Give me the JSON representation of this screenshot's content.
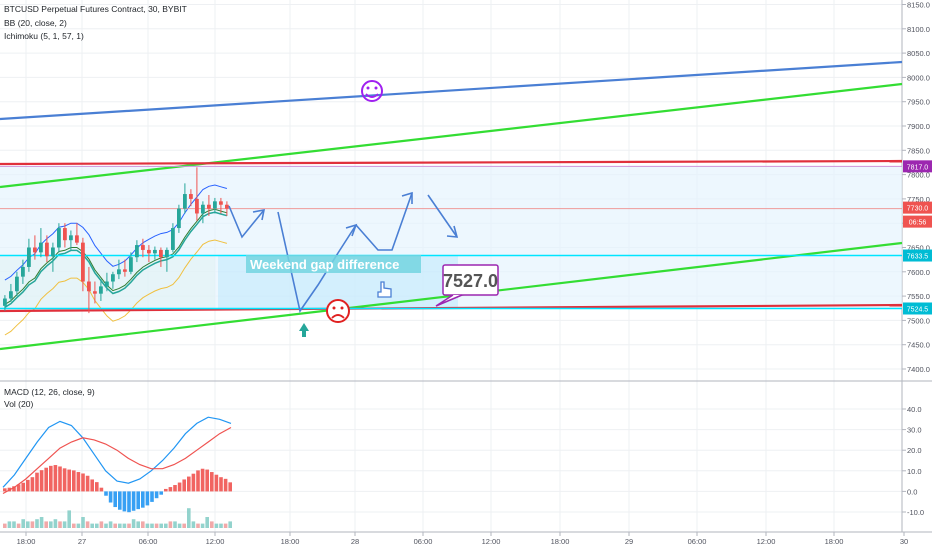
{
  "header": {
    "symbol_line": "BTCUSD Perpetual Futures Contract, 30, BYBIT",
    "bb_line": "BB (20, close, 2)",
    "ichimoku_line": "Ichimoku (5, 1, 57, 1)"
  },
  "macd_panel": {
    "macd_line": "MACD (12, 26, close, 9)",
    "vol_line": "Vol (20)"
  },
  "annotations": {
    "gap_label": "Weekend gap difference",
    "target_price": "7527.0",
    "happy_icon": "smiley-face-icon",
    "sad_icon": "sad-face-icon",
    "hand_icon": "pointing-hand-icon",
    "arrow_icon": "up-arrow-icon"
  },
  "price_badges": [
    {
      "text": "7817.0",
      "color": "#9c27b0"
    },
    {
      "text": "7730.0",
      "color": "#ef5350"
    },
    {
      "text": "06:56",
      "color": "#ef5350"
    },
    {
      "text": "7633.5",
      "color": "#00bcd4"
    },
    {
      "text": "7524.5",
      "color": "#00bcd4"
    }
  ],
  "colors": {
    "up": "#26a69a",
    "down": "#ef5350",
    "blue_line": "#4a7fd4",
    "green_line": "#33dd33",
    "red_line": "#e0303b",
    "cyan_line": "#00e5ff",
    "purple": "#9c27b0"
  },
  "chart_data": {
    "type": "candlestick",
    "price_axis": {
      "ticks": [
        "8150.0",
        "8100.0",
        "8050.0",
        "8000.0",
        "7950.0",
        "7900.0",
        "7850.0",
        "7800.0",
        "7750.0",
        "7700.0",
        "7650.0",
        "7600.0",
        "7550.0",
        "7500.0",
        "7450.0",
        "7400.0"
      ],
      "range": [
        7393,
        8168
      ]
    },
    "macd_axis": {
      "ticks": [
        "40.0",
        "30.0",
        "20.0",
        "10.0",
        "0.0",
        "-10.0"
      ],
      "range": [
        -16,
        42
      ]
    },
    "time_axis": {
      "ticks": [
        "18:00",
        "27",
        "06:00",
        "12:00",
        "18:00",
        "28",
        "06:00",
        "12:00",
        "18:00",
        "29",
        "06:00",
        "12:00",
        "18:00",
        "30"
      ]
    },
    "candles": [
      [
        7530,
        7552,
        7520,
        7545
      ],
      [
        7545,
        7575,
        7538,
        7560
      ],
      [
        7560,
        7600,
        7550,
        7590
      ],
      [
        7590,
        7625,
        7575,
        7610
      ],
      [
        7610,
        7668,
        7600,
        7650
      ],
      [
        7650,
        7675,
        7625,
        7640
      ],
      [
        7640,
        7690,
        7630,
        7660
      ],
      [
        7660,
        7675,
        7620,
        7632
      ],
      [
        7632,
        7660,
        7600,
        7650
      ],
      [
        7650,
        7700,
        7640,
        7690
      ],
      [
        7690,
        7700,
        7650,
        7665
      ],
      [
        7665,
        7685,
        7645,
        7675
      ],
      [
        7675,
        7700,
        7655,
        7660
      ],
      [
        7660,
        7670,
        7560,
        7580
      ],
      [
        7580,
        7610,
        7515,
        7560
      ],
      [
        7560,
        7580,
        7535,
        7555
      ],
      [
        7555,
        7585,
        7540,
        7570
      ],
      [
        7570,
        7598,
        7560,
        7580
      ],
      [
        7580,
        7600,
        7565,
        7595
      ],
      [
        7595,
        7625,
        7585,
        7605
      ],
      [
        7605,
        7625,
        7590,
        7600
      ],
      [
        7600,
        7640,
        7595,
        7630
      ],
      [
        7630,
        7665,
        7620,
        7655
      ],
      [
        7655,
        7668,
        7630,
        7645
      ],
      [
        7645,
        7655,
        7620,
        7638
      ],
      [
        7638,
        7652,
        7625,
        7645
      ],
      [
        7645,
        7650,
        7610,
        7630
      ],
      [
        7630,
        7650,
        7600,
        7645
      ],
      [
        7645,
        7700,
        7640,
        7690
      ],
      [
        7690,
        7738,
        7680,
        7730
      ],
      [
        7730,
        7782,
        7720,
        7760
      ],
      [
        7760,
        7770,
        7735,
        7750
      ],
      [
        7750,
        7815,
        7705,
        7720
      ],
      [
        7720,
        7745,
        7700,
        7738
      ],
      [
        7738,
        7758,
        7715,
        7730
      ],
      [
        7730,
        7752,
        7720,
        7745
      ],
      [
        7745,
        7752,
        7720,
        7738
      ],
      [
        7738,
        7745,
        7715,
        7730
      ]
    ],
    "macd_series": [
      {
        "name": "MACD",
        "values": [
          2,
          8,
          16,
          24,
          31,
          34,
          32,
          26,
          18,
          10,
          5,
          4,
          6,
          10,
          15,
          21,
          28,
          33,
          36,
          35,
          33
        ]
      },
      {
        "name": "Signal",
        "values": [
          -1,
          2,
          6,
          11,
          16,
          21,
          24,
          26,
          25,
          23,
          20,
          16,
          13,
          11,
          11,
          13,
          16,
          20,
          24,
          28,
          31
        ]
      }
    ],
    "histogram": [
      1.5,
      1.8,
      2.5,
      3.4,
      4.2,
      5.6,
      6.9,
      9.1,
      10.3,
      11.5,
      12.4,
      12.8,
      12.1,
      11.2,
      10.6,
      10.2,
      9.4,
      8.7,
      7.6,
      5.8,
      4.5,
      1.8,
      -2.1,
      -5.4,
      -7.6,
      -8.9,
      -9.7,
      -10.1,
      -9.4,
      -8.6,
      -7.9,
      -6.8,
      -5.1,
      -3.3,
      -1.6,
      1.2,
      2.1,
      3.1,
      4.3,
      5.8,
      7.2,
      8.6,
      10.2,
      11.0,
      10.6,
      9.4,
      8.1,
      6.9,
      6.1,
      4.4
    ],
    "volume": [
      2,
      3,
      3,
      2,
      4,
      3,
      3,
      4,
      5,
      3,
      3,
      4,
      3,
      3,
      8,
      2,
      2,
      5,
      3,
      2,
      2,
      3,
      2,
      3,
      2,
      2,
      2,
      2,
      4,
      3,
      3,
      2,
      2,
      2,
      2,
      2,
      3,
      3,
      2,
      2,
      9,
      3,
      2,
      2,
      5,
      3,
      2,
      2,
      2,
      3
    ]
  }
}
